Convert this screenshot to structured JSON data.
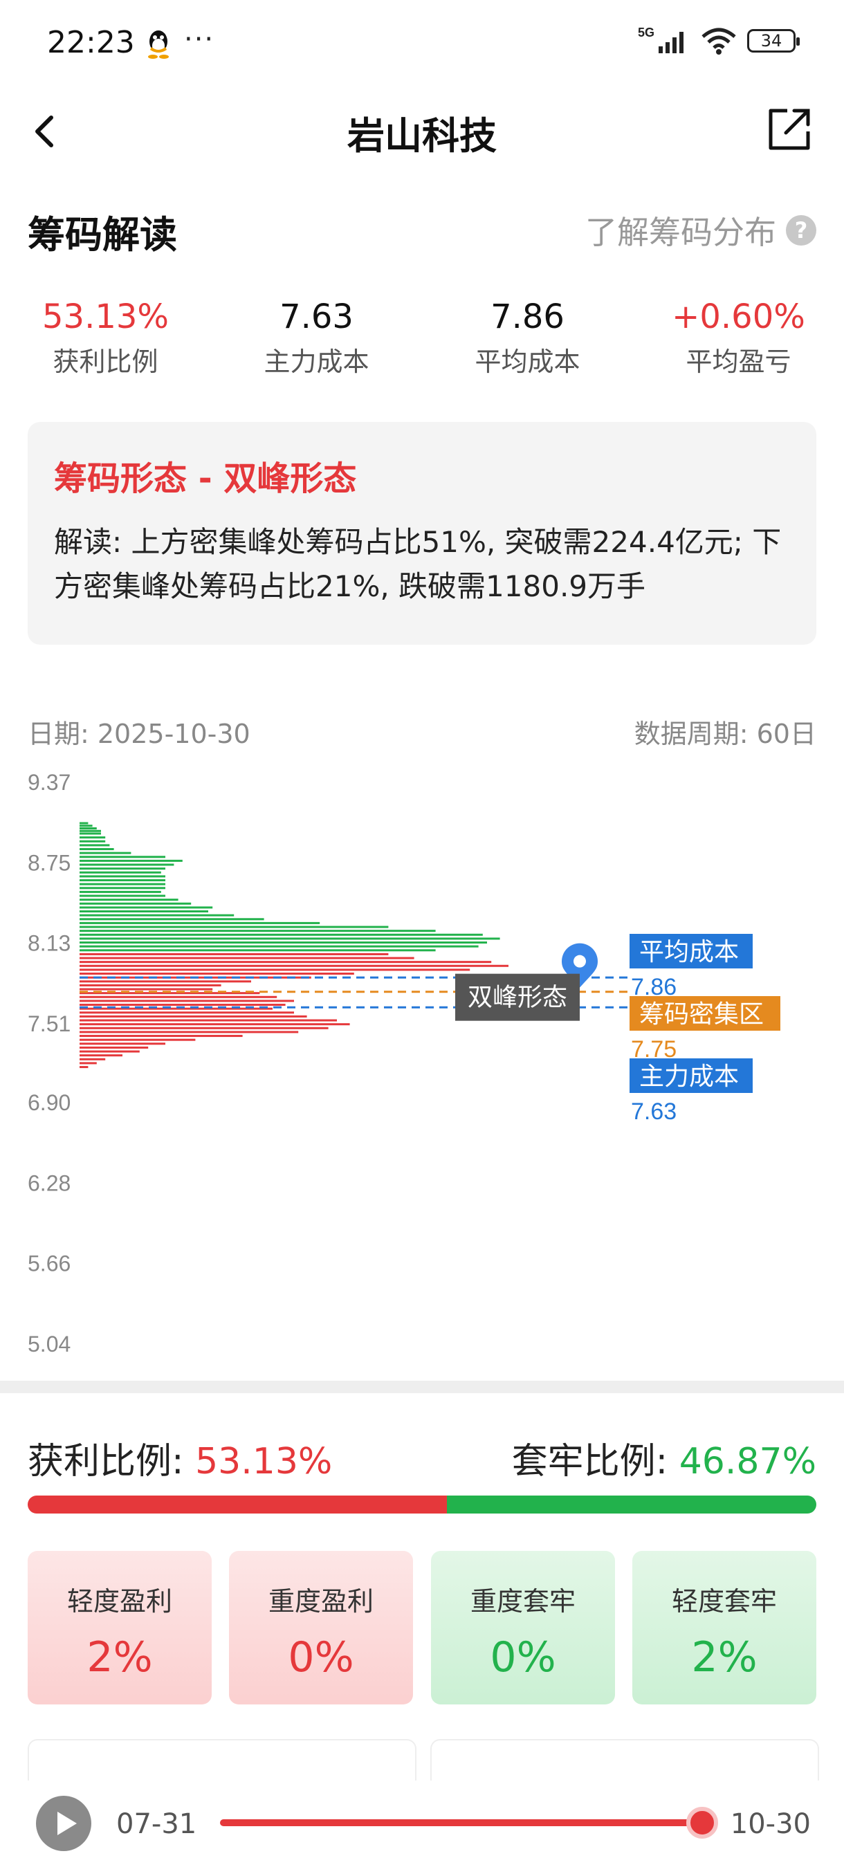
{
  "status_bar": {
    "time": "22:23",
    "more": "···",
    "network": "5G",
    "battery": "34"
  },
  "nav": {
    "title": "岩山科技"
  },
  "header": {
    "title": "筹码解读",
    "link": "了解筹码分布",
    "help": "?"
  },
  "stats": [
    {
      "value": "53.13%",
      "label": "获利比例",
      "color": "#e5383b"
    },
    {
      "value": "7.63",
      "label": "主力成本",
      "color": "#111111"
    },
    {
      "value": "7.86",
      "label": "平均成本",
      "color": "#111111"
    },
    {
      "value": "+0.60%",
      "label": "平均盈亏",
      "color": "#e5383b"
    }
  ],
  "pattern": {
    "title": "筹码形态 - 双峰形态",
    "text": "解读: 上方密集峰处筹码占比51%, 突破需224.4亿元; 下方密集峰处筹码占比21%, 跌破需1180.9万手"
  },
  "chart_meta": {
    "date": "日期: 2025-10-30",
    "period": "数据周期: 60日"
  },
  "chart_data": {
    "type": "bar",
    "orientation": "horizontal",
    "ylim": [
      5.04,
      9.37
    ],
    "yticks": [
      "9.37",
      "8.75",
      "8.13",
      "7.51",
      "6.90",
      "6.28",
      "5.66",
      "5.04"
    ],
    "profit_color": "#e5383b",
    "loss_color": "#22b24c",
    "bars": [
      [
        9.05,
        0.02,
        "g"
      ],
      [
        9.03,
        0.03,
        "g"
      ],
      [
        9.01,
        0.04,
        "g"
      ],
      [
        8.99,
        0.05,
        "g"
      ],
      [
        8.97,
        0.05,
        "g"
      ],
      [
        8.94,
        0.06,
        "g"
      ],
      [
        8.91,
        0.06,
        "g"
      ],
      [
        8.88,
        0.07,
        "g"
      ],
      [
        8.85,
        0.08,
        "g"
      ],
      [
        8.82,
        0.12,
        "g"
      ],
      [
        8.79,
        0.2,
        "g"
      ],
      [
        8.76,
        0.24,
        "g"
      ],
      [
        8.73,
        0.22,
        "g"
      ],
      [
        8.7,
        0.2,
        "g"
      ],
      [
        8.67,
        0.19,
        "g"
      ],
      [
        8.64,
        0.2,
        "g"
      ],
      [
        8.61,
        0.2,
        "g"
      ],
      [
        8.58,
        0.2,
        "g"
      ],
      [
        8.55,
        0.2,
        "g"
      ],
      [
        8.52,
        0.19,
        "g"
      ],
      [
        8.49,
        0.2,
        "g"
      ],
      [
        8.46,
        0.23,
        "g"
      ],
      [
        8.43,
        0.26,
        "g"
      ],
      [
        8.4,
        0.31,
        "g"
      ],
      [
        8.37,
        0.3,
        "g"
      ],
      [
        8.34,
        0.36,
        "g"
      ],
      [
        8.31,
        0.43,
        "g"
      ],
      [
        8.28,
        0.56,
        "g"
      ],
      [
        8.25,
        0.72,
        "g"
      ],
      [
        8.22,
        0.83,
        "g"
      ],
      [
        8.19,
        0.94,
        "g"
      ],
      [
        8.16,
        0.98,
        "g"
      ],
      [
        8.13,
        0.95,
        "g"
      ],
      [
        8.1,
        0.93,
        "g"
      ],
      [
        8.07,
        0.83,
        "g"
      ],
      [
        8.04,
        0.72,
        "r"
      ],
      [
        8.01,
        0.78,
        "r"
      ],
      [
        7.98,
        0.96,
        "r"
      ],
      [
        7.95,
        1.0,
        "r"
      ],
      [
        7.92,
        0.91,
        "r"
      ],
      [
        7.89,
        0.64,
        "r"
      ],
      [
        7.86,
        0.54,
        "r"
      ],
      [
        7.83,
        0.4,
        "r"
      ],
      [
        7.8,
        0.33,
        "r"
      ],
      [
        7.77,
        0.31,
        "r"
      ],
      [
        7.74,
        0.42,
        "r"
      ],
      [
        7.71,
        0.46,
        "r"
      ],
      [
        7.68,
        0.5,
        "r"
      ],
      [
        7.65,
        0.48,
        "r"
      ],
      [
        7.62,
        0.45,
        "r"
      ],
      [
        7.59,
        0.5,
        "r"
      ],
      [
        7.56,
        0.53,
        "r"
      ],
      [
        7.53,
        0.6,
        "r"
      ],
      [
        7.5,
        0.63,
        "r"
      ],
      [
        7.47,
        0.58,
        "r"
      ],
      [
        7.44,
        0.51,
        "r"
      ],
      [
        7.41,
        0.38,
        "r"
      ],
      [
        7.38,
        0.27,
        "r"
      ],
      [
        7.35,
        0.2,
        "r"
      ],
      [
        7.32,
        0.16,
        "r"
      ],
      [
        7.29,
        0.14,
        "r"
      ],
      [
        7.26,
        0.1,
        "r"
      ],
      [
        7.23,
        0.06,
        "r"
      ],
      [
        7.2,
        0.04,
        "r"
      ],
      [
        7.17,
        0.02,
        "r"
      ]
    ],
    "markers": [
      {
        "label": "平均成本",
        "value": "7.86",
        "color": "#2377d8"
      },
      {
        "label": "筹码密集区",
        "value": "7.75",
        "color": "#e58a1f"
      },
      {
        "label": "主力成本",
        "value": "7.63",
        "color": "#2377d8"
      }
    ],
    "tooltip": "双峰形态"
  },
  "ratio": {
    "profit_label": "获利比例: ",
    "profit_value": "53.13%",
    "loss_label": "套牢比例: ",
    "loss_value": "46.87%",
    "profit_fraction": 0.5313
  },
  "levels": [
    {
      "label": "轻度盈利",
      "value": "2%"
    },
    {
      "label": "重度盈利",
      "value": "0%"
    },
    {
      "label": "重度套牢",
      "value": "0%"
    },
    {
      "label": "轻度套牢",
      "value": "2%"
    }
  ],
  "timeline": {
    "start": "07-31",
    "end": "10-30",
    "progress": 1.0
  }
}
